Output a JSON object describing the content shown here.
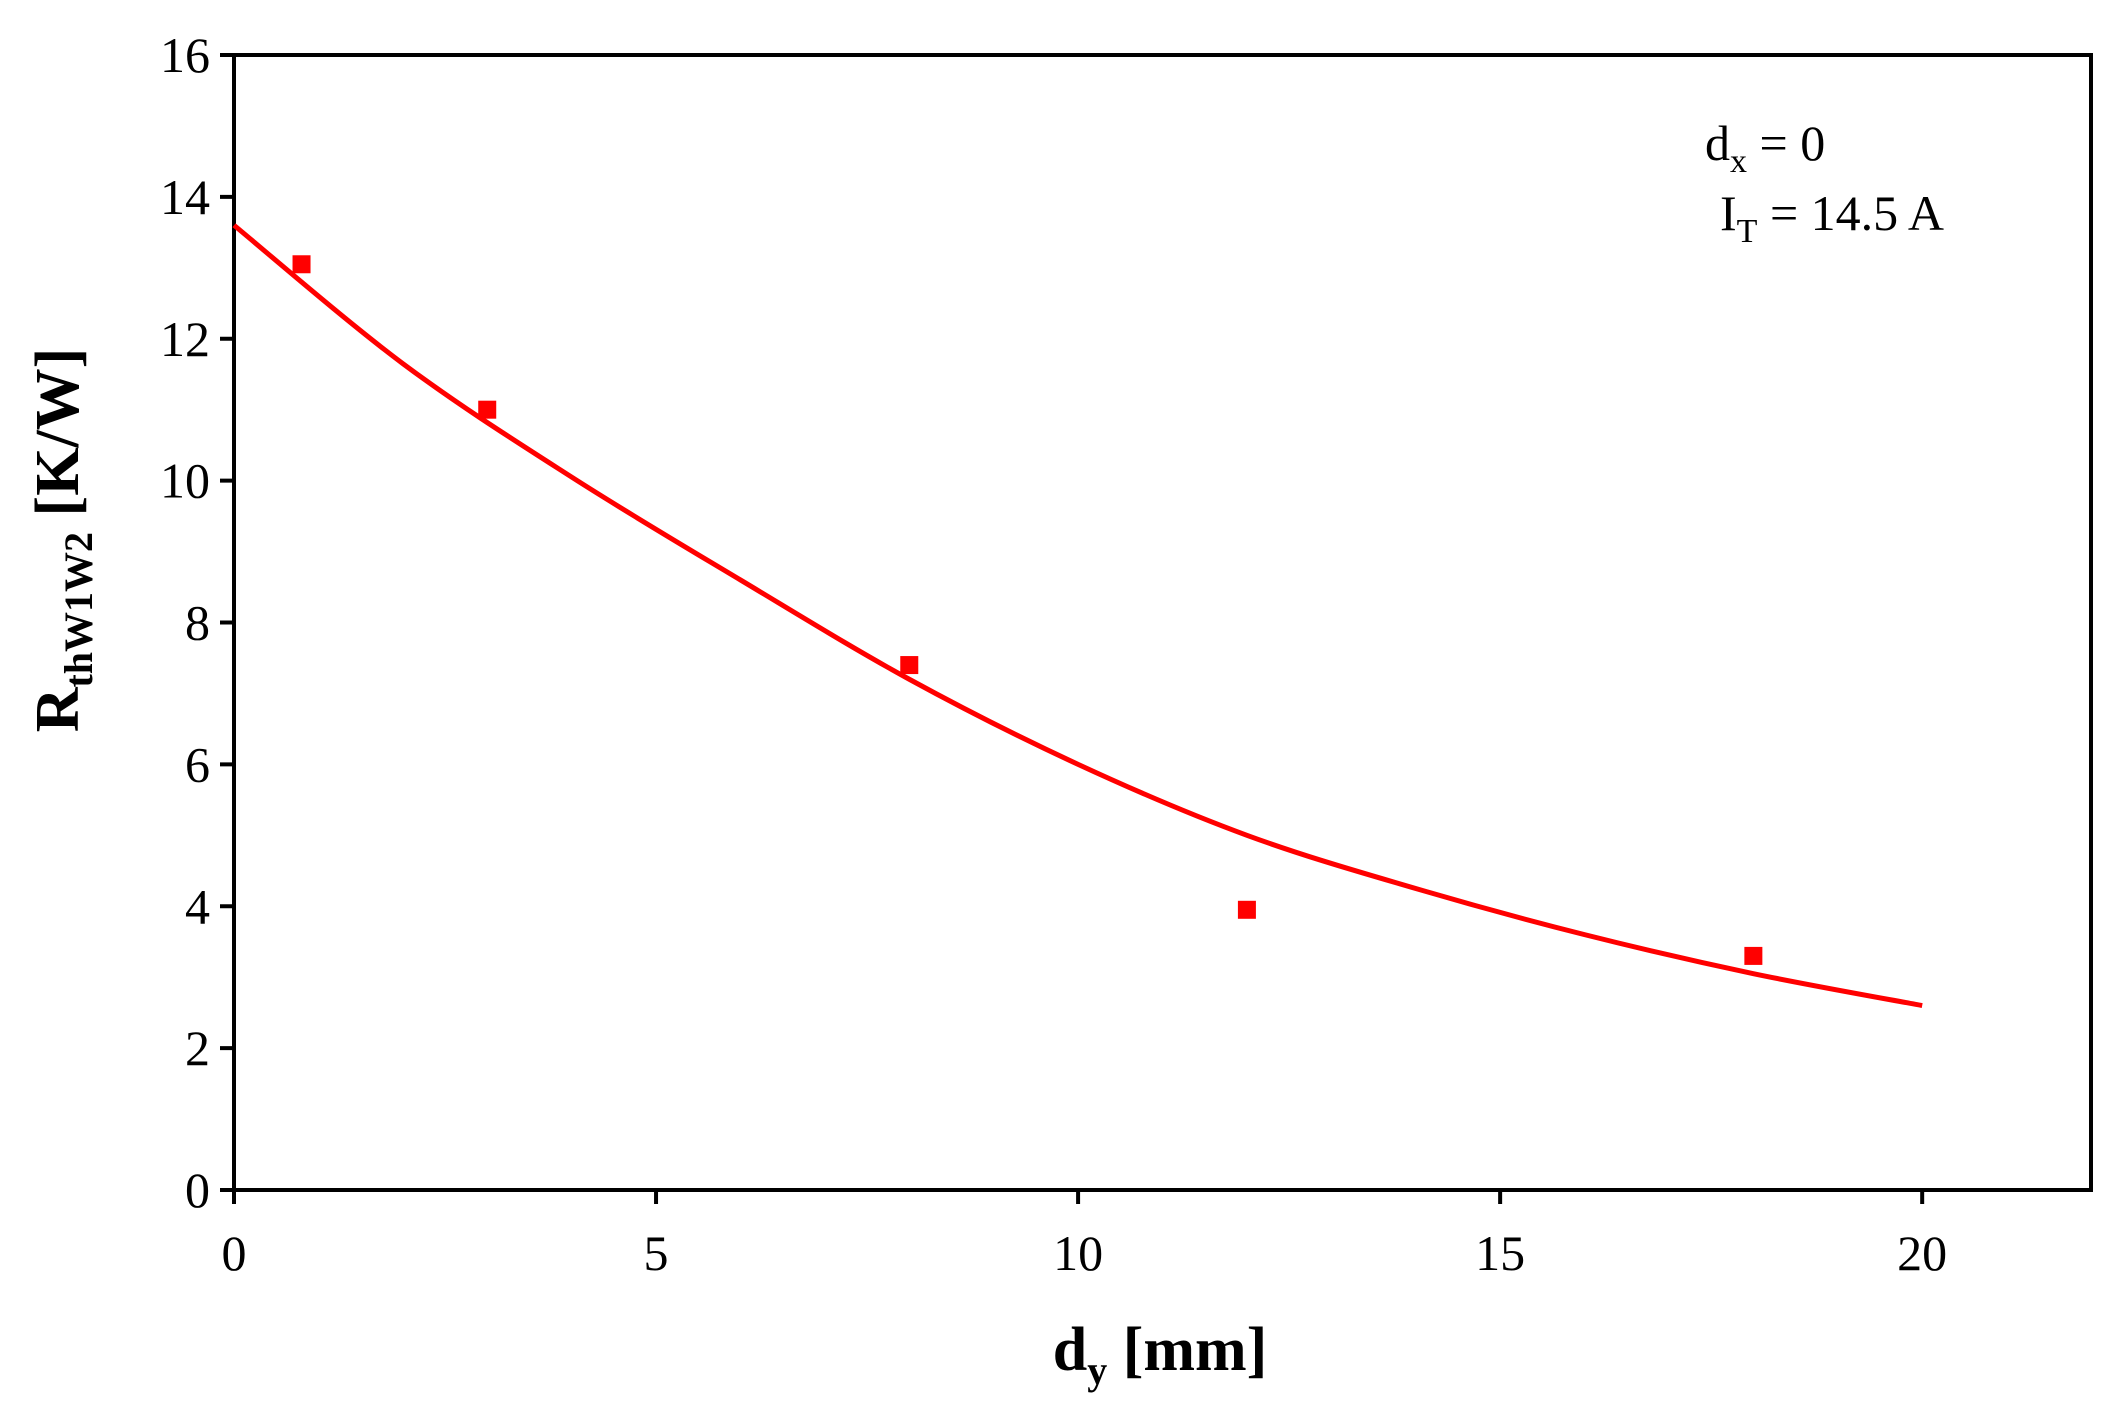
{
  "chart_data": {
    "type": "scatter",
    "title": "",
    "xlabel": {
      "main": "d",
      "sub": "y",
      "rest": " [mm]"
    },
    "ylabel": {
      "main": "R",
      "sub": "thW1W2",
      "rest": " [K/W]"
    },
    "xlim": [
      0,
      22
    ],
    "ylim": [
      0,
      16
    ],
    "x_ticks": [
      0,
      5,
      10,
      15,
      20
    ],
    "y_ticks": [
      0,
      2,
      4,
      6,
      8,
      10,
      12,
      14,
      16
    ],
    "grid": false,
    "legend": "none",
    "series": [
      {
        "kind": "points",
        "marker": "square",
        "color": "#ff0000",
        "points": [
          {
            "x": 0.8,
            "y": 13.05
          },
          {
            "x": 3.0,
            "y": 11.0
          },
          {
            "x": 8.0,
            "y": 7.4
          },
          {
            "x": 12.0,
            "y": 3.95
          },
          {
            "x": 18.0,
            "y": 3.3
          }
        ]
      },
      {
        "kind": "fit-line",
        "color": "#ff0000",
        "points": [
          {
            "x": 0,
            "y": 13.6
          },
          {
            "x": 2,
            "y": 11.65
          },
          {
            "x": 4,
            "y": 10.05
          },
          {
            "x": 6,
            "y": 8.6
          },
          {
            "x": 8,
            "y": 7.2
          },
          {
            "x": 10,
            "y": 6.0
          },
          {
            "x": 12,
            "y": 5.0
          },
          {
            "x": 14,
            "y": 4.25
          },
          {
            "x": 16,
            "y": 3.6
          },
          {
            "x": 18,
            "y": 3.05
          },
          {
            "x": 20,
            "y": 2.6
          }
        ]
      }
    ],
    "annotations": [
      {
        "main": "d",
        "sub": "x",
        "rest": " = 0"
      },
      {
        "main": "I",
        "sub": "T",
        "rest": " = 14.5 A"
      }
    ]
  }
}
